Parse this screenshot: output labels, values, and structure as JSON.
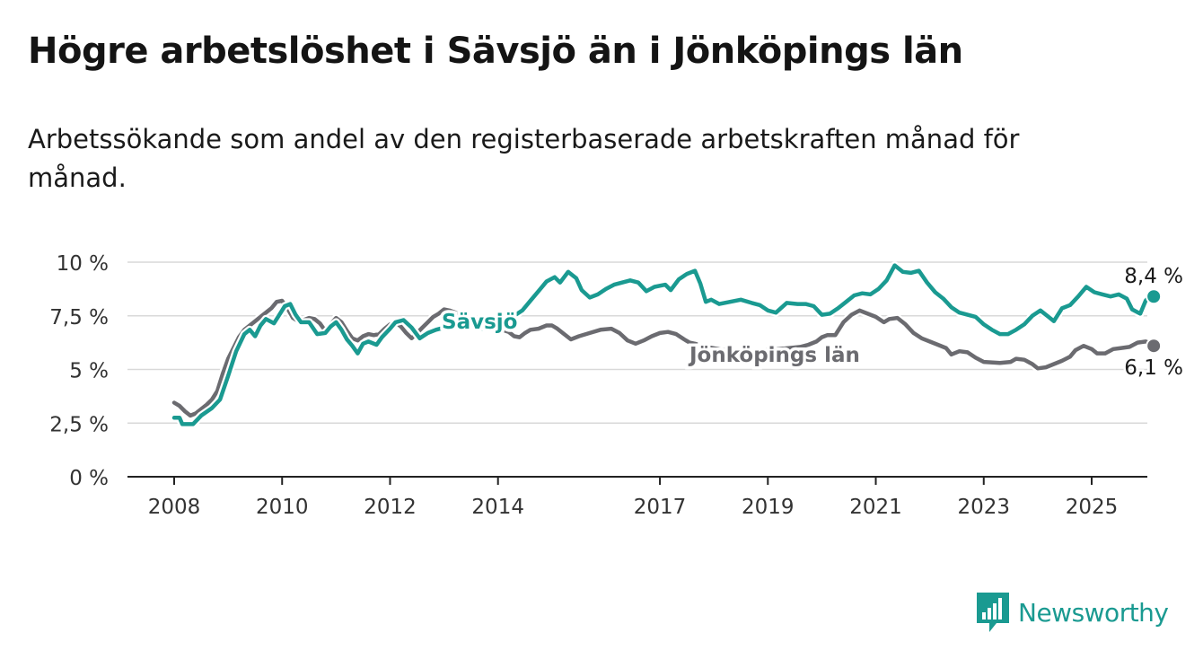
{
  "title": "Högre arbetslöshet i Sävsjö än i Jönköpings län",
  "subtitle": "Arbetssökande som andel av den registerbaserade arbetskraften månad för månad.",
  "brand": {
    "name": "Newsworthy",
    "color": "#1a9a91",
    "icon": "chart-bar-icon"
  },
  "chart_data": {
    "type": "line",
    "x_unit": "year",
    "ylim": [
      0,
      10
    ],
    "xlim": [
      2007.8,
      2026.0
    ],
    "y_ticks": [
      {
        "value": 0,
        "label": "0 %"
      },
      {
        "value": 2.5,
        "label": "2,5 %"
      },
      {
        "value": 5,
        "label": "5 %"
      },
      {
        "value": 7.5,
        "label": "7,5 %"
      },
      {
        "value": 10,
        "label": "10 %"
      }
    ],
    "x_ticks": [
      {
        "value": 2008,
        "label": "2008"
      },
      {
        "value": 2010,
        "label": "2010"
      },
      {
        "value": 2012,
        "label": "2012"
      },
      {
        "value": 2014,
        "label": "2014"
      },
      {
        "value": 2017,
        "label": "2017"
      },
      {
        "value": 2019,
        "label": "2019"
      },
      {
        "value": 2021,
        "label": "2021"
      },
      {
        "value": 2023,
        "label": "2023"
      },
      {
        "value": 2025,
        "label": "2025"
      }
    ],
    "grid": true,
    "series": [
      {
        "name": "Jönköpings län",
        "color": "#6b6b70",
        "end_label": "6,1 %",
        "points": [
          [
            2008.0,
            3.45
          ],
          [
            2008.1,
            3.3
          ],
          [
            2008.2,
            3.05
          ],
          [
            2008.3,
            2.85
          ],
          [
            2008.4,
            2.95
          ],
          [
            2008.5,
            3.15
          ],
          [
            2008.6,
            3.35
          ],
          [
            2008.7,
            3.6
          ],
          [
            2008.8,
            4.0
          ],
          [
            2008.9,
            4.8
          ],
          [
            2009.0,
            5.5
          ],
          [
            2009.1,
            6.0
          ],
          [
            2009.2,
            6.5
          ],
          [
            2009.3,
            6.85
          ],
          [
            2009.4,
            7.05
          ],
          [
            2009.5,
            7.25
          ],
          [
            2009.6,
            7.45
          ],
          [
            2009.7,
            7.65
          ],
          [
            2009.8,
            7.85
          ],
          [
            2009.9,
            8.15
          ],
          [
            2010.0,
            8.2
          ],
          [
            2010.1,
            7.85
          ],
          [
            2010.2,
            7.4
          ],
          [
            2010.3,
            7.25
          ],
          [
            2010.4,
            7.3
          ],
          [
            2010.5,
            7.4
          ],
          [
            2010.6,
            7.35
          ],
          [
            2010.7,
            7.15
          ],
          [
            2010.8,
            6.8
          ],
          [
            2010.9,
            7.1
          ],
          [
            2011.0,
            7.4
          ],
          [
            2011.1,
            7.2
          ],
          [
            2011.2,
            6.8
          ],
          [
            2011.3,
            6.45
          ],
          [
            2011.4,
            6.35
          ],
          [
            2011.5,
            6.55
          ],
          [
            2011.6,
            6.65
          ],
          [
            2011.7,
            6.6
          ],
          [
            2011.8,
            6.65
          ],
          [
            2011.9,
            6.9
          ],
          [
            2012.0,
            7.1
          ],
          [
            2012.1,
            7.2
          ],
          [
            2012.2,
            7.0
          ],
          [
            2012.3,
            6.7
          ],
          [
            2012.4,
            6.45
          ],
          [
            2012.5,
            6.7
          ],
          [
            2012.6,
            6.95
          ],
          [
            2012.7,
            7.2
          ],
          [
            2012.8,
            7.45
          ],
          [
            2012.9,
            7.6
          ],
          [
            2013.0,
            7.8
          ],
          [
            2013.1,
            7.75
          ],
          [
            2013.5,
            7.4
          ],
          [
            2013.9,
            7.0
          ],
          [
            2014.2,
            6.75
          ],
          [
            2014.3,
            6.55
          ],
          [
            2014.4,
            6.5
          ],
          [
            2014.5,
            6.7
          ],
          [
            2014.6,
            6.85
          ],
          [
            2014.75,
            6.9
          ],
          [
            2014.9,
            7.05
          ],
          [
            2015.0,
            7.05
          ],
          [
            2015.1,
            6.9
          ],
          [
            2015.2,
            6.7
          ],
          [
            2015.35,
            6.4
          ],
          [
            2015.5,
            6.55
          ],
          [
            2015.7,
            6.7
          ],
          [
            2015.9,
            6.85
          ],
          [
            2016.1,
            6.9
          ],
          [
            2016.25,
            6.7
          ],
          [
            2016.4,
            6.35
          ],
          [
            2016.55,
            6.2
          ],
          [
            2016.7,
            6.35
          ],
          [
            2016.85,
            6.55
          ],
          [
            2017.0,
            6.7
          ],
          [
            2017.15,
            6.75
          ],
          [
            2017.3,
            6.65
          ],
          [
            2017.45,
            6.4
          ],
          [
            2017.55,
            6.25
          ],
          [
            2017.65,
            6.2
          ],
          [
            2017.85,
            6.05
          ],
          [
            2018.2,
            5.9
          ],
          [
            2018.6,
            5.85
          ],
          [
            2019.0,
            5.9
          ],
          [
            2019.4,
            6.0
          ],
          [
            2019.6,
            6.05
          ],
          [
            2019.75,
            6.15
          ],
          [
            2019.9,
            6.3
          ],
          [
            2020.0,
            6.5
          ],
          [
            2020.1,
            6.6
          ],
          [
            2020.25,
            6.6
          ],
          [
            2020.4,
            7.2
          ],
          [
            2020.55,
            7.55
          ],
          [
            2020.7,
            7.75
          ],
          [
            2020.85,
            7.6
          ],
          [
            2021.0,
            7.45
          ],
          [
            2021.15,
            7.2
          ],
          [
            2021.25,
            7.35
          ],
          [
            2021.4,
            7.4
          ],
          [
            2021.55,
            7.1
          ],
          [
            2021.7,
            6.7
          ],
          [
            2021.85,
            6.45
          ],
          [
            2022.0,
            6.3
          ],
          [
            2022.15,
            6.15
          ],
          [
            2022.3,
            6.0
          ],
          [
            2022.4,
            5.7
          ],
          [
            2022.55,
            5.85
          ],
          [
            2022.7,
            5.8
          ],
          [
            2022.85,
            5.55
          ],
          [
            2023.0,
            5.35
          ],
          [
            2023.3,
            5.3
          ],
          [
            2023.5,
            5.35
          ],
          [
            2023.6,
            5.5
          ],
          [
            2023.75,
            5.45
          ],
          [
            2023.9,
            5.25
          ],
          [
            2024.0,
            5.05
          ],
          [
            2024.15,
            5.1
          ],
          [
            2024.3,
            5.25
          ],
          [
            2024.45,
            5.4
          ],
          [
            2024.6,
            5.6
          ],
          [
            2024.7,
            5.9
          ],
          [
            2024.85,
            6.1
          ],
          [
            2025.0,
            5.95
          ],
          [
            2025.1,
            5.75
          ],
          [
            2025.25,
            5.75
          ],
          [
            2025.4,
            5.95
          ],
          [
            2025.55,
            6.0
          ],
          [
            2025.7,
            6.05
          ],
          [
            2025.85,
            6.25
          ],
          [
            2026.0,
            6.3
          ],
          [
            2026.05,
            6.25
          ],
          [
            2026.15,
            6.1
          ]
        ]
      },
      {
        "name": "Sävsjö",
        "color": "#1a9a91",
        "end_label": "8,4 %",
        "points": [
          [
            2008.0,
            2.75
          ],
          [
            2008.1,
            2.75
          ],
          [
            2008.15,
            2.45
          ],
          [
            2008.35,
            2.45
          ],
          [
            2008.5,
            2.85
          ],
          [
            2008.7,
            3.2
          ],
          [
            2008.85,
            3.6
          ],
          [
            2009.0,
            4.7
          ],
          [
            2009.15,
            5.85
          ],
          [
            2009.3,
            6.65
          ],
          [
            2009.4,
            6.85
          ],
          [
            2009.5,
            6.55
          ],
          [
            2009.6,
            7.05
          ],
          [
            2009.7,
            7.35
          ],
          [
            2009.85,
            7.15
          ],
          [
            2009.95,
            7.55
          ],
          [
            2010.05,
            7.95
          ],
          [
            2010.15,
            8.05
          ],
          [
            2010.25,
            7.55
          ],
          [
            2010.35,
            7.2
          ],
          [
            2010.5,
            7.2
          ],
          [
            2010.65,
            6.65
          ],
          [
            2010.8,
            6.7
          ],
          [
            2010.9,
            7.0
          ],
          [
            2011.0,
            7.2
          ],
          [
            2011.1,
            6.85
          ],
          [
            2011.2,
            6.4
          ],
          [
            2011.3,
            6.1
          ],
          [
            2011.4,
            5.75
          ],
          [
            2011.5,
            6.2
          ],
          [
            2011.6,
            6.3
          ],
          [
            2011.75,
            6.15
          ],
          [
            2011.85,
            6.5
          ],
          [
            2012.0,
            6.9
          ],
          [
            2012.1,
            7.2
          ],
          [
            2012.25,
            7.3
          ],
          [
            2012.4,
            6.95
          ],
          [
            2012.55,
            6.45
          ],
          [
            2012.7,
            6.7
          ],
          [
            2012.85,
            6.85
          ],
          [
            2013.0,
            6.95
          ],
          [
            2013.4,
            7.2
          ],
          [
            2013.7,
            6.9
          ],
          [
            2014.0,
            7.2
          ],
          [
            2014.15,
            7.35
          ],
          [
            2014.3,
            7.5
          ],
          [
            2014.45,
            7.75
          ],
          [
            2014.6,
            8.2
          ],
          [
            2014.75,
            8.65
          ],
          [
            2014.9,
            9.1
          ],
          [
            2015.05,
            9.3
          ],
          [
            2015.15,
            9.05
          ],
          [
            2015.3,
            9.55
          ],
          [
            2015.45,
            9.25
          ],
          [
            2015.55,
            8.7
          ],
          [
            2015.7,
            8.35
          ],
          [
            2015.85,
            8.5
          ],
          [
            2016.0,
            8.75
          ],
          [
            2016.15,
            8.95
          ],
          [
            2016.3,
            9.05
          ],
          [
            2016.45,
            9.15
          ],
          [
            2016.6,
            9.05
          ],
          [
            2016.75,
            8.65
          ],
          [
            2016.9,
            8.85
          ],
          [
            2017.1,
            8.95
          ],
          [
            2017.2,
            8.7
          ],
          [
            2017.35,
            9.2
          ],
          [
            2017.5,
            9.45
          ],
          [
            2017.65,
            9.6
          ],
          [
            2017.75,
            9.0
          ],
          [
            2017.85,
            8.15
          ],
          [
            2017.95,
            8.25
          ],
          [
            2018.1,
            8.05
          ],
          [
            2018.3,
            8.15
          ],
          [
            2018.5,
            8.25
          ],
          [
            2018.7,
            8.1
          ],
          [
            2018.85,
            8.0
          ],
          [
            2019.0,
            7.75
          ],
          [
            2019.15,
            7.65
          ],
          [
            2019.35,
            8.1
          ],
          [
            2019.55,
            8.05
          ],
          [
            2019.7,
            8.05
          ],
          [
            2019.85,
            7.95
          ],
          [
            2020.0,
            7.55
          ],
          [
            2020.15,
            7.6
          ],
          [
            2020.3,
            7.85
          ],
          [
            2020.45,
            8.15
          ],
          [
            2020.6,
            8.45
          ],
          [
            2020.75,
            8.55
          ],
          [
            2020.9,
            8.5
          ],
          [
            2021.05,
            8.75
          ],
          [
            2021.2,
            9.15
          ],
          [
            2021.35,
            9.85
          ],
          [
            2021.5,
            9.55
          ],
          [
            2021.65,
            9.5
          ],
          [
            2021.8,
            9.6
          ],
          [
            2021.95,
            9.05
          ],
          [
            2022.1,
            8.6
          ],
          [
            2022.25,
            8.3
          ],
          [
            2022.4,
            7.9
          ],
          [
            2022.55,
            7.65
          ],
          [
            2022.7,
            7.55
          ],
          [
            2022.85,
            7.45
          ],
          [
            2023.0,
            7.1
          ],
          [
            2023.15,
            6.85
          ],
          [
            2023.3,
            6.65
          ],
          [
            2023.45,
            6.65
          ],
          [
            2023.6,
            6.85
          ],
          [
            2023.75,
            7.1
          ],
          [
            2023.9,
            7.5
          ],
          [
            2024.05,
            7.75
          ],
          [
            2024.2,
            7.45
          ],
          [
            2024.3,
            7.25
          ],
          [
            2024.45,
            7.85
          ],
          [
            2024.6,
            8.0
          ],
          [
            2024.75,
            8.4
          ],
          [
            2024.9,
            8.85
          ],
          [
            2025.05,
            8.6
          ],
          [
            2025.2,
            8.5
          ],
          [
            2025.35,
            8.4
          ],
          [
            2025.5,
            8.5
          ],
          [
            2025.65,
            8.3
          ],
          [
            2025.75,
            7.8
          ],
          [
            2025.9,
            7.6
          ],
          [
            2026.0,
            8.2
          ],
          [
            2026.1,
            8.5
          ],
          [
            2026.15,
            8.4
          ]
        ]
      }
    ],
    "inline_labels": [
      {
        "series": "Sävsjö",
        "text": "Sävsjö"
      },
      {
        "series": "Jönköpings län",
        "text": "Jönköpings län"
      }
    ]
  }
}
